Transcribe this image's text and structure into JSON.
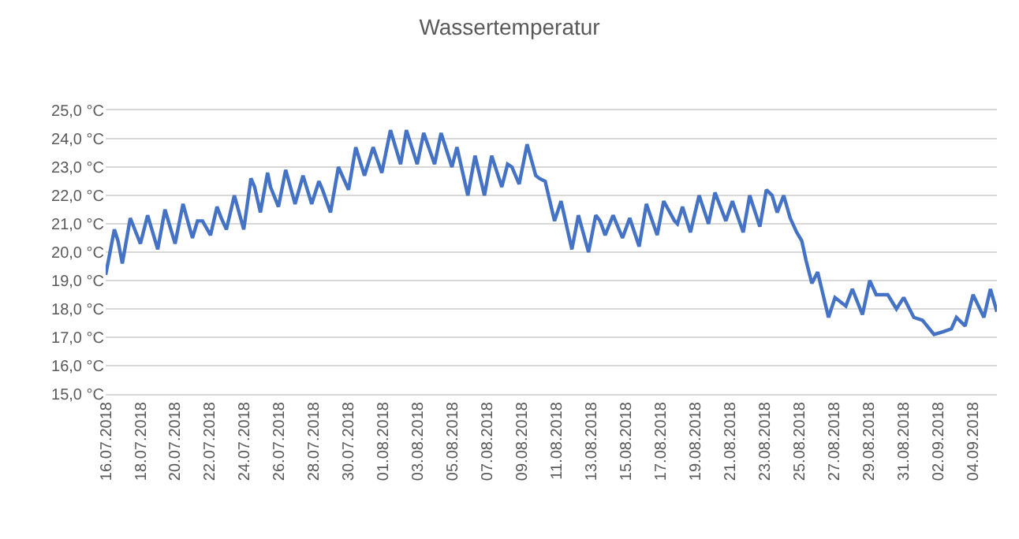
{
  "chart_data": {
    "type": "line",
    "title": "Wassertemperatur",
    "x": [
      "2018-07-16T00:00",
      "2018-07-16T12:00",
      "2018-07-16T17:00",
      "2018-07-16T23:00",
      "2018-07-17T10:00",
      "2018-07-18T00:00",
      "2018-07-18T10:00",
      "2018-07-19T00:00",
      "2018-07-19T10:00",
      "2018-07-20T00:00",
      "2018-07-20T11:00",
      "2018-07-21T00:00",
      "2018-07-21T07:00",
      "2018-07-21T14:00",
      "2018-07-22T01:00",
      "2018-07-22T10:00",
      "2018-07-22T16:00",
      "2018-07-22T23:00",
      "2018-07-23T10:00",
      "2018-07-23T23:00",
      "2018-07-24T09:00",
      "2018-07-24T14:00",
      "2018-07-24T22:00",
      "2018-07-25T08:00",
      "2018-07-25T12:00",
      "2018-07-25T23:00",
      "2018-07-26T09:00",
      "2018-07-26T22:00",
      "2018-07-27T09:00",
      "2018-07-27T21:00",
      "2018-07-28T07:00",
      "2018-07-28T12:00",
      "2018-07-28T23:00",
      "2018-07-29T10:00",
      "2018-07-30T00:00",
      "2018-07-30T10:00",
      "2018-07-30T22:00",
      "2018-07-31T10:00",
      "2018-07-31T22:00",
      "2018-08-01T10:00",
      "2018-08-02T00:00",
      "2018-08-02T08:00",
      "2018-08-02T23:00",
      "2018-08-03T08:00",
      "2018-08-03T23:00",
      "2018-08-04T08:00",
      "2018-08-04T23:00",
      "2018-08-05T06:00",
      "2018-08-05T21:00",
      "2018-08-06T07:00",
      "2018-08-06T20:00",
      "2018-08-07T06:00",
      "2018-08-07T20:00",
      "2018-08-08T04:00",
      "2018-08-08T10:00",
      "2018-08-08T20:00",
      "2018-08-09T07:00",
      "2018-08-09T19:00",
      "2018-08-10T00:00",
      "2018-08-10T08:00",
      "2018-08-10T21:00",
      "2018-08-11T06:00",
      "2018-08-11T21:00",
      "2018-08-12T06:00",
      "2018-08-12T20:00",
      "2018-08-13T06:00",
      "2018-08-13T12:00",
      "2018-08-13T19:00",
      "2018-08-14T06:00",
      "2018-08-14T19:00",
      "2018-08-15T05:00",
      "2018-08-15T18:00",
      "2018-08-16T04:00",
      "2018-08-16T19:00",
      "2018-08-17T04:00",
      "2018-08-17T19:00",
      "2018-08-17T23:00",
      "2018-08-18T06:00",
      "2018-08-18T17:00",
      "2018-08-19T05:00",
      "2018-08-19T18:00",
      "2018-08-20T03:00",
      "2018-08-20T18:00",
      "2018-08-21T03:00",
      "2018-08-21T18:00",
      "2018-08-22T03:00",
      "2018-08-22T17:00",
      "2018-08-23T02:00",
      "2018-08-23T10:00",
      "2018-08-23T17:00",
      "2018-08-24T02:00",
      "2018-08-24T11:00",
      "2018-08-24T20:00",
      "2018-08-25T03:00",
      "2018-08-25T09:00",
      "2018-08-25T17:00",
      "2018-08-26T01:00",
      "2018-08-26T16:00",
      "2018-08-27T01:00",
      "2018-08-27T16:00",
      "2018-08-28T01:00",
      "2018-08-28T15:00",
      "2018-08-29T01:00",
      "2018-08-29T10:00",
      "2018-08-30T02:00",
      "2018-08-30T14:00",
      "2018-08-31T00:00",
      "2018-08-31T14:00",
      "2018-09-01T02:00",
      "2018-09-01T18:00",
      "2018-09-02T07:00",
      "2018-09-02T18:00",
      "2018-09-03T01:00",
      "2018-09-03T13:00",
      "2018-09-04T00:00",
      "2018-09-04T15:00",
      "2018-09-05T00:00",
      "2018-09-05T09:00"
    ],
    "series": [
      {
        "color": "#4472c4",
        "values": [
          19.2,
          20.8,
          20.4,
          19.6,
          21.2,
          20.3,
          21.3,
          20.1,
          21.5,
          20.3,
          21.7,
          20.5,
          21.1,
          21.1,
          20.6,
          21.6,
          21.2,
          20.8,
          22.0,
          20.8,
          22.6,
          22.3,
          21.4,
          22.8,
          22.3,
          21.6,
          22.9,
          21.7,
          22.7,
          21.7,
          22.5,
          22.2,
          21.4,
          23.0,
          22.2,
          23.7,
          22.7,
          23.7,
          22.8,
          24.3,
          23.1,
          24.3,
          23.1,
          24.2,
          23.1,
          24.2,
          23.0,
          23.7,
          22.0,
          23.4,
          22.0,
          23.4,
          22.3,
          23.1,
          23.0,
          22.4,
          23.8,
          22.7,
          22.6,
          22.5,
          21.1,
          21.8,
          20.1,
          21.3,
          20.0,
          21.3,
          21.1,
          20.6,
          21.3,
          20.5,
          21.2,
          20.2,
          21.7,
          20.6,
          21.8,
          21.1,
          21.0,
          21.6,
          20.7,
          22.0,
          21.0,
          22.1,
          21.1,
          21.8,
          20.7,
          22.0,
          20.9,
          22.2,
          22.0,
          21.4,
          22.0,
          21.2,
          20.7,
          20.4,
          19.7,
          18.9,
          19.3,
          17.7,
          18.4,
          18.1,
          18.7,
          17.8,
          19.0,
          18.5,
          18.5,
          18.0,
          18.4,
          17.7,
          17.6,
          17.1,
          17.2,
          17.3,
          17.7,
          17.4,
          18.5,
          17.7,
          18.7,
          17.9
        ]
      }
    ],
    "xlim": [
      "2018-07-16",
      "2018-09-05T09:00"
    ],
    "xticks": [
      {
        "value": "2018-07-16",
        "label": "16.07.2018"
      },
      {
        "value": "2018-07-18",
        "label": "18.07.2018"
      },
      {
        "value": "2018-07-20",
        "label": "20.07.2018"
      },
      {
        "value": "2018-07-22",
        "label": "22.07.2018"
      },
      {
        "value": "2018-07-24",
        "label": "24.07.2018"
      },
      {
        "value": "2018-07-26",
        "label": "26.07.2018"
      },
      {
        "value": "2018-07-28",
        "label": "28.07.2018"
      },
      {
        "value": "2018-07-30",
        "label": "30.07.2018"
      },
      {
        "value": "2018-08-01",
        "label": "01.08.2018"
      },
      {
        "value": "2018-08-03",
        "label": "03.08.2018"
      },
      {
        "value": "2018-08-05",
        "label": "05.08.2018"
      },
      {
        "value": "2018-08-07",
        "label": "07.08.2018"
      },
      {
        "value": "2018-08-09",
        "label": "09.08.2018"
      },
      {
        "value": "2018-08-11",
        "label": "11.08.2018"
      },
      {
        "value": "2018-08-13",
        "label": "13.08.2018"
      },
      {
        "value": "2018-08-15",
        "label": "15.08.2018"
      },
      {
        "value": "2018-08-17",
        "label": "17.08.2018"
      },
      {
        "value": "2018-08-19",
        "label": "19.08.2018"
      },
      {
        "value": "2018-08-21",
        "label": "21.08.2018"
      },
      {
        "value": "2018-08-23",
        "label": "23.08.2018"
      },
      {
        "value": "2018-08-25",
        "label": "25.08.2018"
      },
      {
        "value": "2018-08-27",
        "label": "27.08.2018"
      },
      {
        "value": "2018-08-29",
        "label": "29.08.2018"
      },
      {
        "value": "2018-08-31",
        "label": "31.08.2018"
      },
      {
        "value": "2018-09-02",
        "label": "02.09.2018"
      },
      {
        "value": "2018-09-04",
        "label": "04.09.2018"
      }
    ],
    "ylim": [
      15,
      25
    ],
    "yticks": [
      {
        "value": 15,
        "label": "15,0 °C"
      },
      {
        "value": 16,
        "label": "16,0 °C"
      },
      {
        "value": 17,
        "label": "17,0 °C"
      },
      {
        "value": 18,
        "label": "18,0 °C"
      },
      {
        "value": 19,
        "label": "19,0 °C"
      },
      {
        "value": 20,
        "label": "20,0 °C"
      },
      {
        "value": 21,
        "label": "21,0 °C"
      },
      {
        "value": 22,
        "label": "22,0 °C"
      },
      {
        "value": 23,
        "label": "23,0 °C"
      },
      {
        "value": 24,
        "label": "24,0 °C"
      },
      {
        "value": 25,
        "label": "25,0 °C"
      }
    ],
    "grid": "y",
    "marker": "none",
    "line_style": "solid"
  }
}
